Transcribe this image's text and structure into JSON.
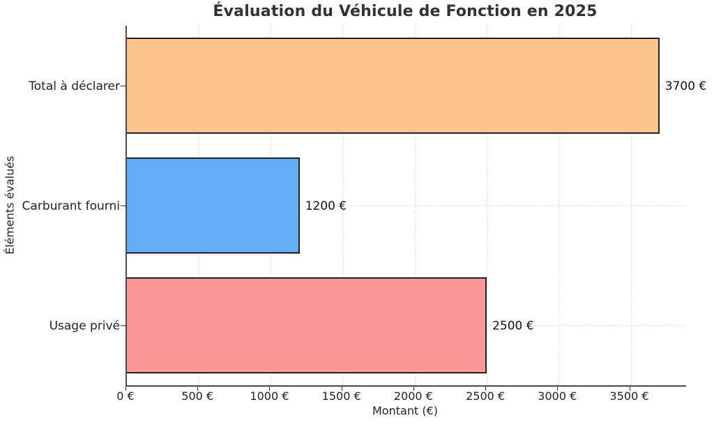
{
  "chart_data": {
    "type": "bar",
    "orientation": "horizontal",
    "title": "Évaluation du Véhicule de Fonction en 2025",
    "xlabel": "Montant (€)",
    "ylabel": "Éléments évalués",
    "categories": [
      "Total à déclarer",
      "Carburant fourni",
      "Usage privé"
    ],
    "values": [
      3700,
      1200,
      2500
    ],
    "value_labels": [
      "3700 €",
      "1200 €",
      "2500 €"
    ],
    "bar_colors": [
      "#FBC58D",
      "#63ADF7",
      "#FC9797"
    ],
    "bar_edge_color": "#222222",
    "xlim": [
      0,
      3885
    ],
    "xticks": [
      0,
      500,
      1000,
      1500,
      2000,
      2500,
      3000,
      3500
    ],
    "xtick_labels": [
      "0 €",
      "500 €",
      "1000 €",
      "1500 €",
      "2000 €",
      "2500 €",
      "3000 €",
      "3500 €"
    ],
    "grid": "dashed, both axes",
    "grid_color": "#e1e1e1",
    "legend": "none"
  }
}
